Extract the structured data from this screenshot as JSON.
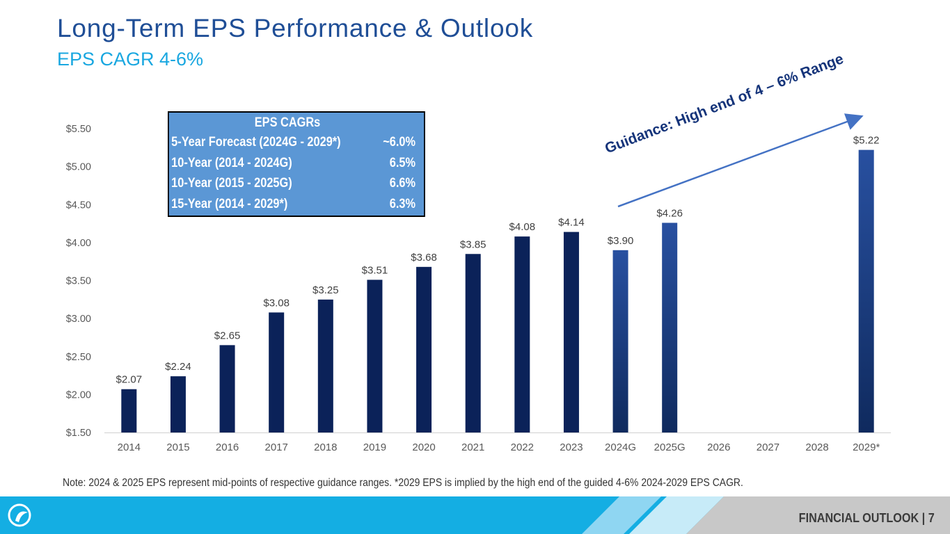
{
  "header": {
    "title": "Long-Term EPS Performance & Outlook",
    "subtitle": "EPS CAGR 4-6%"
  },
  "cagr_table": {
    "heading": "EPS CAGRs",
    "rows": [
      {
        "label": "5-Year Forecast (2024G - 2029*)",
        "value": "~6.0%"
      },
      {
        "label": "10-Year (2014 - 2024G)",
        "value": "6.5%"
      },
      {
        "label": "10-Year (2015 - 2025G)",
        "value": "6.6%"
      },
      {
        "label": "15-Year (2014 - 2029*)",
        "value": "6.3%"
      }
    ]
  },
  "guidance_text": "Guidance: High end of 4 – 6% Range",
  "footnote": "Note: 2024 & 2025 EPS represent mid-points of respective guidance ranges. *2029 EPS is implied by the high end of the guided 4-6% 2024-2029 EPS CAGR.",
  "footer": {
    "section_label": "FINANCIAL OUTLOOK  |  7"
  },
  "colors": {
    "actual_bar": "#0b2259",
    "guided_bar_top": "#2850a0",
    "guided_bar_bottom": "#0f2a5e",
    "axis_text": "#595959",
    "footer_blue": "#14aee3",
    "footer_gray": "#c8c8c8"
  },
  "chart_data": {
    "type": "bar",
    "title": "",
    "xlabel": "",
    "ylabel": "",
    "ylim": [
      1.5,
      5.5
    ],
    "y_ticks": [
      "$1.50",
      "$2.00",
      "$2.50",
      "$3.00",
      "$3.50",
      "$4.00",
      "$4.50",
      "$5.00",
      "$5.50"
    ],
    "y_tick_values": [
      1.5,
      2.0,
      2.5,
      3.0,
      3.5,
      4.0,
      4.5,
      5.0,
      5.5
    ],
    "categories": [
      "2014",
      "2015",
      "2016",
      "2017",
      "2018",
      "2019",
      "2020",
      "2021",
      "2022",
      "2023",
      "2024G",
      "2025G",
      "2026",
      "2027",
      "2028",
      "2029*"
    ],
    "values": [
      2.07,
      2.24,
      2.65,
      3.08,
      3.25,
      3.51,
      3.68,
      3.85,
      4.08,
      4.14,
      3.9,
      4.26,
      null,
      null,
      null,
      5.22
    ],
    "labels": [
      "$2.07",
      "$2.24",
      "$2.65",
      "$3.08",
      "$3.25",
      "$3.51",
      "$3.68",
      "$3.85",
      "$4.08",
      "$4.14",
      "$3.90",
      "$4.26",
      "",
      "",
      "",
      "$5.22"
    ],
    "guided": [
      false,
      false,
      false,
      false,
      false,
      false,
      false,
      false,
      false,
      false,
      true,
      true,
      false,
      false,
      false,
      true
    ],
    "grid": false
  }
}
